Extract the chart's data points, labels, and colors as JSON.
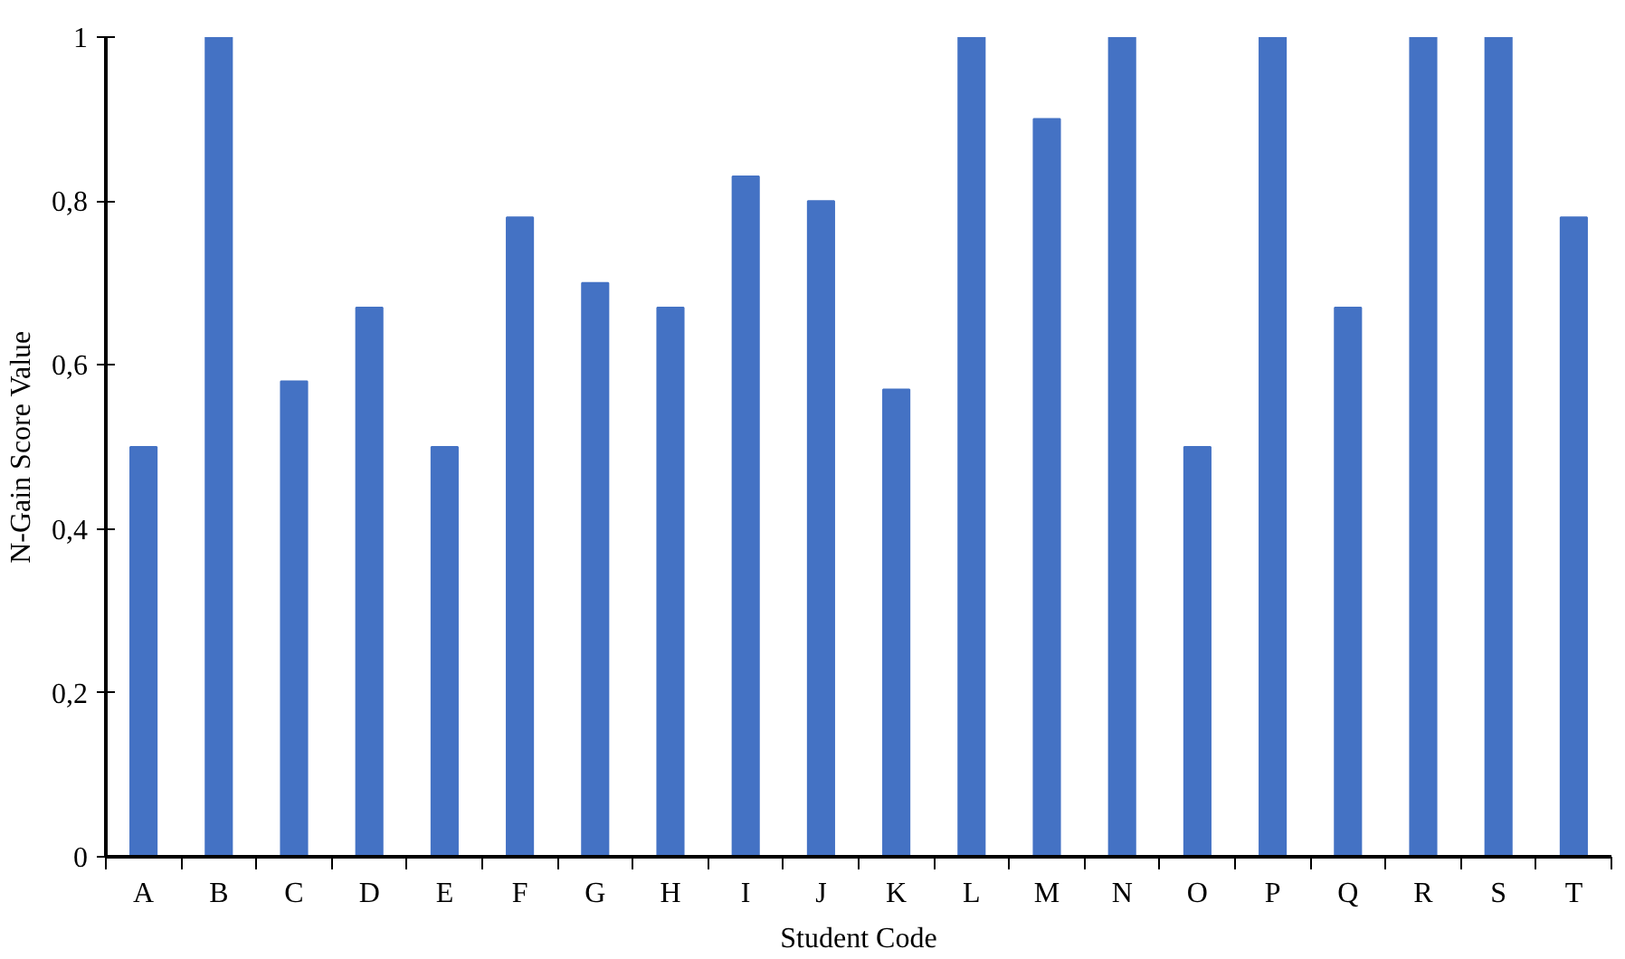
{
  "chart_data": {
    "type": "bar",
    "xlabel": "Student Code",
    "ylabel": "N-Gain Score Value",
    "categories": [
      "A",
      "B",
      "C",
      "D",
      "E",
      "F",
      "G",
      "H",
      "I",
      "J",
      "K",
      "L",
      "M",
      "N",
      "O",
      "P",
      "Q",
      "R",
      "S",
      "T"
    ],
    "values": [
      0.5,
      1,
      0.58,
      0.67,
      0.5,
      0.78,
      0.7,
      0.67,
      0.83,
      0.8,
      0.57,
      1,
      0.9,
      1,
      0.5,
      1,
      0.67,
      1,
      1,
      0.78
    ],
    "color": "#4472c4",
    "ylim": [
      0,
      1
    ],
    "yticks": [
      0,
      {
        "value": 0.2,
        "label": "0,2"
      },
      {
        "value": 0.4,
        "label": "0,4"
      },
      {
        "value": 0.6,
        "label": "0,6"
      },
      {
        "value": 0.8,
        "label": "0,8"
      },
      1
    ],
    "grid": false
  }
}
